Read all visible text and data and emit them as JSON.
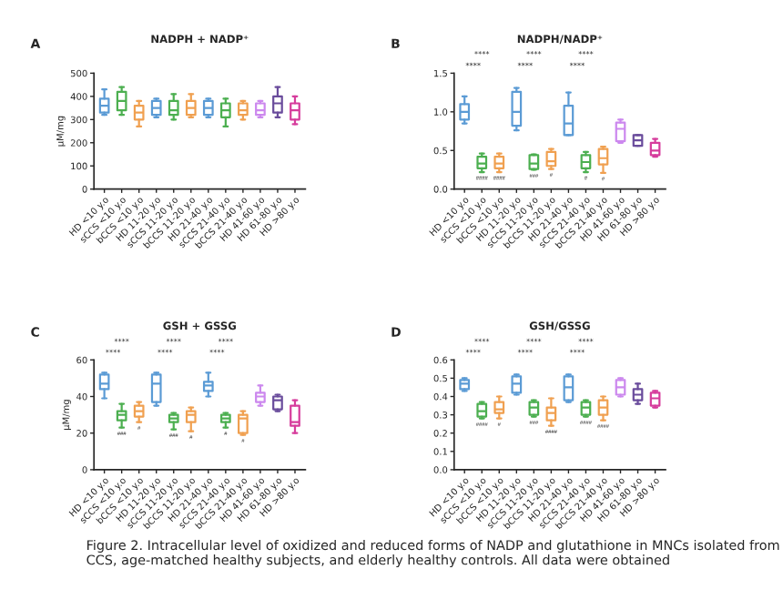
{
  "chart_data": [
    {
      "type": "box",
      "title": "NADPH + NADP⁺",
      "ylabel": "μM/mg",
      "grid": false,
      "categories": [
        "HD <10 y.o",
        "sCCS <10 y.o",
        "bCCS <10 y.o",
        "HD 11-20 y.o",
        "sCCS 11-20 y.o",
        "bCCS 11-20 y.o",
        "HD 21-40 y.o",
        "sCCS 21-40 y.o",
        "bCCS 21-40 y.o",
        "HD 41-60 y.o",
        "HD 61-80 y.o",
        "HD >80 y.o"
      ],
      "colors": [
        "#5b9bd5",
        "#4caf50",
        "#f0a050",
        "#5b9bd5",
        "#4caf50",
        "#f0a050",
        "#5b9bd5",
        "#4caf50",
        "#f0a050",
        "#cc88ee",
        "#6a4c9c",
        "#d63c9c"
      ],
      "boxes": [
        {
          "low": 320,
          "q1": 330,
          "median": 360,
          "q3": 390,
          "high": 430
        },
        {
          "low": 320,
          "q1": 340,
          "median": 380,
          "q3": 420,
          "high": 440
        },
        {
          "low": 270,
          "q1": 300,
          "median": 330,
          "q3": 360,
          "high": 380
        },
        {
          "low": 310,
          "q1": 320,
          "median": 350,
          "q3": 380,
          "high": 390
        },
        {
          "low": 300,
          "q1": 320,
          "median": 340,
          "q3": 380,
          "high": 410
        },
        {
          "low": 310,
          "q1": 320,
          "median": 350,
          "q3": 380,
          "high": 410
        },
        {
          "low": 310,
          "q1": 320,
          "median": 350,
          "q3": 380,
          "high": 390
        },
        {
          "low": 270,
          "q1": 310,
          "median": 340,
          "q3": 370,
          "high": 390
        },
        {
          "low": 300,
          "q1": 320,
          "median": 340,
          "q3": 370,
          "high": 380
        },
        {
          "low": 310,
          "q1": 320,
          "median": 340,
          "q3": 370,
          "high": 380
        },
        {
          "low": 310,
          "q1": 330,
          "median": 370,
          "q3": 400,
          "high": 440
        },
        {
          "low": 280,
          "q1": 300,
          "median": 340,
          "q3": 370,
          "high": 400
        }
      ],
      "ylim": [
        0,
        500
      ],
      "yticks": [
        0,
        100,
        200,
        300,
        400,
        500
      ],
      "annotations": [
        "A"
      ]
    },
    {
      "type": "box",
      "title": "NADPH/NADP⁺",
      "grid": false,
      "categories": [
        "HD <10 y.o",
        "sCCS <10 y.o",
        "bCCS <10 y.o",
        "HD 11-20 y.o",
        "sCCS 11-20 y.o",
        "bCCS 11-20 y.o",
        "HD 21-40 y.o",
        "sCCS 21-40 y.o",
        "bCCS 21-40 y.o",
        "HD 41-60 y.o",
        "HD 61-80 y.o",
        "HD >80 y.o"
      ],
      "colors": [
        "#5b9bd5",
        "#4caf50",
        "#f0a050",
        "#5b9bd5",
        "#4caf50",
        "#f0a050",
        "#5b9bd5",
        "#4caf50",
        "#f0a050",
        "#cc88ee",
        "#6a4c9c",
        "#d63c9c"
      ],
      "boxes": [
        {
          "low": 0.85,
          "q1": 0.9,
          "median": 1.0,
          "q3": 1.1,
          "high": 1.2
        },
        {
          "low": 0.22,
          "q1": 0.27,
          "median": 0.33,
          "q3": 0.42,
          "high": 0.46
        },
        {
          "low": 0.22,
          "q1": 0.27,
          "median": 0.33,
          "q3": 0.42,
          "high": 0.46
        },
        {
          "low": 0.76,
          "q1": 0.82,
          "median": 1.0,
          "q3": 1.26,
          "high": 1.31
        },
        {
          "low": 0.25,
          "q1": 0.26,
          "median": 0.33,
          "q3": 0.44,
          "high": 0.45
        },
        {
          "low": 0.26,
          "q1": 0.3,
          "median": 0.36,
          "q3": 0.48,
          "high": 0.52
        },
        {
          "low": 0.7,
          "q1": 0.7,
          "median": 0.85,
          "q3": 1.08,
          "high": 1.25
        },
        {
          "low": 0.22,
          "q1": 0.27,
          "median": 0.35,
          "q3": 0.44,
          "high": 0.48
        },
        {
          "low": 0.21,
          "q1": 0.32,
          "median": 0.4,
          "q3": 0.52,
          "high": 0.55
        },
        {
          "low": 0.6,
          "q1": 0.62,
          "median": 0.78,
          "q3": 0.86,
          "high": 0.9
        },
        {
          "low": 0.56,
          "q1": 0.56,
          "median": 0.63,
          "q3": 0.7,
          "high": 0.7
        },
        {
          "low": 0.42,
          "q1": 0.44,
          "median": 0.5,
          "q3": 0.6,
          "high": 0.65
        }
      ],
      "ylim": [
        0,
        1.5
      ],
      "yticks": [
        {
          "value": 0,
          "label": "0.0"
        },
        {
          "value": 0.5,
          "label": "0.5"
        },
        {
          "value": 1.0,
          "label": "1.0"
        },
        {
          "value": 1.5,
          "label": "1.5"
        }
      ],
      "annotations": [
        "B",
        "****",
        "****",
        "****",
        "****",
        "****",
        "****",
        "####",
        "####",
        "###",
        "#",
        "#",
        "#"
      ]
    },
    {
      "type": "box",
      "title": "GSH + GSSG",
      "ylabel": "μM/mg",
      "grid": false,
      "categories": [
        "HD <10 y.o",
        "sCCS <10 y.o",
        "bCCS <10 y.o",
        "HD 11-20 y.o",
        "sCCS 11-20 y.o",
        "bCCS 11-20 y.o",
        "HD 21-40 y.o",
        "sCCS 21-40 y.o",
        "bCCS 21-40 y.o",
        "HD 41-60 y.o",
        "HD 61-80 y.o",
        "HD >80 y.o"
      ],
      "colors": [
        "#5b9bd5",
        "#4caf50",
        "#f0a050",
        "#5b9bd5",
        "#4caf50",
        "#f0a050",
        "#5b9bd5",
        "#4caf50",
        "#f0a050",
        "#cc88ee",
        "#6a4c9c",
        "#d63c9c"
      ],
      "boxes": [
        {
          "low": 39,
          "q1": 44,
          "median": 47,
          "q3": 52,
          "high": 53
        },
        {
          "low": 23,
          "q1": 27,
          "median": 30,
          "q3": 32,
          "high": 36
        },
        {
          "low": 26,
          "q1": 29,
          "median": 32,
          "q3": 35,
          "high": 37
        },
        {
          "low": 35,
          "q1": 37,
          "median": 47,
          "q3": 52,
          "high": 53
        },
        {
          "low": 22,
          "q1": 26,
          "median": 28,
          "q3": 30,
          "high": 31
        },
        {
          "low": 21,
          "q1": 26,
          "median": 30,
          "q3": 32,
          "high": 34
        },
        {
          "low": 40,
          "q1": 43,
          "median": 46,
          "q3": 48,
          "high": 53
        },
        {
          "low": 23,
          "q1": 26,
          "median": 28,
          "q3": 30,
          "high": 31
        },
        {
          "low": 19,
          "q1": 20,
          "median": 28,
          "q3": 30,
          "high": 32
        },
        {
          "low": 35,
          "q1": 37,
          "median": 40,
          "q3": 42,
          "high": 46
        },
        {
          "low": 32,
          "q1": 33,
          "median": 38,
          "q3": 40,
          "high": 41
        },
        {
          "low": 20,
          "q1": 24,
          "median": 26,
          "q3": 35,
          "high": 38
        }
      ],
      "ylim": [
        0,
        60
      ],
      "yticks": [
        0,
        20,
        40,
        60
      ],
      "annotations": [
        "C",
        "****",
        "****",
        "****",
        "****",
        "****",
        "****",
        "###",
        "#",
        "###",
        "#",
        "#",
        "#"
      ]
    },
    {
      "type": "box",
      "title": "GSH/GSSG",
      "grid": false,
      "categories": [
        "HD <10 y.o",
        "sCCS <10 y.o",
        "bCCS <10 y.o",
        "HD 11-20 y.o",
        "sCCS 11-20 y.o",
        "bCCS 11-20 y.o",
        "HD 21-40 y.o",
        "sCCS 21-40 y.o",
        "bCCS 21-40 y.o",
        "HD 41-60 y.o",
        "HD 61-80 y.o",
        "HD >80 y.o"
      ],
      "colors": [
        "#5b9bd5",
        "#4caf50",
        "#f0a050",
        "#5b9bd5",
        "#4caf50",
        "#f0a050",
        "#5b9bd5",
        "#4caf50",
        "#f0a050",
        "#cc88ee",
        "#6a4c9c",
        "#d63c9c"
      ],
      "boxes": [
        {
          "low": 0.43,
          "q1": 0.44,
          "median": 0.47,
          "q3": 0.49,
          "high": 0.5
        },
        {
          "low": 0.28,
          "q1": 0.29,
          "median": 0.32,
          "q3": 0.36,
          "high": 0.37
        },
        {
          "low": 0.28,
          "q1": 0.31,
          "median": 0.33,
          "q3": 0.37,
          "high": 0.4
        },
        {
          "low": 0.41,
          "q1": 0.42,
          "median": 0.47,
          "q3": 0.51,
          "high": 0.52
        },
        {
          "low": 0.29,
          "q1": 0.3,
          "median": 0.34,
          "q3": 0.37,
          "high": 0.38
        },
        {
          "low": 0.24,
          "q1": 0.27,
          "median": 0.31,
          "q3": 0.34,
          "high": 0.39
        },
        {
          "low": 0.37,
          "q1": 0.38,
          "median": 0.45,
          "q3": 0.51,
          "high": 0.52
        },
        {
          "low": 0.29,
          "q1": 0.3,
          "median": 0.34,
          "q3": 0.37,
          "high": 0.38
        },
        {
          "low": 0.27,
          "q1": 0.3,
          "median": 0.34,
          "q3": 0.38,
          "high": 0.4
        },
        {
          "low": 0.4,
          "q1": 0.41,
          "median": 0.45,
          "q3": 0.49,
          "high": 0.5
        },
        {
          "low": 0.36,
          "q1": 0.38,
          "median": 0.41,
          "q3": 0.44,
          "high": 0.47
        },
        {
          "low": 0.34,
          "q1": 0.35,
          "median": 0.39,
          "q3": 0.42,
          "high": 0.43
        }
      ],
      "ylim": [
        0,
        0.6
      ],
      "yticks": [
        {
          "value": 0,
          "label": "0.0"
        },
        0.1,
        0.2,
        0.3,
        0.4,
        0.5,
        0.6
      ],
      "annotations": [
        "D",
        "****",
        "****",
        "****",
        "****",
        "****",
        "****",
        "####",
        "#",
        "###",
        "####",
        "####",
        "####",
        "Figure 2. Intracellular level of oxidized and reduced forms of NADP and glutathione in MNCs isolated from CCS, age-matched healthy subjects, and elderly healthy controls. All data were obtained"
      ]
    }
  ]
}
